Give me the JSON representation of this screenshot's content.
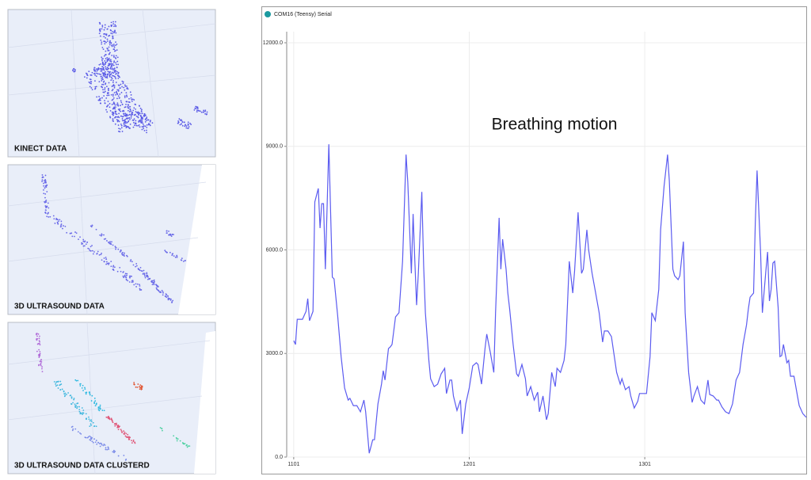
{
  "panels": [
    {
      "label": "KINECT DATA"
    },
    {
      "label": "3D ULTRASOUND DATA"
    },
    {
      "label": "3D ULTRASOUND DATA CLUSTERD"
    }
  ],
  "window_title": "COM16 (Teensy) Serial",
  "chart_data": {
    "type": "line",
    "annotation": "Breathing motion",
    "color": "#5b5bf0",
    "grid": true,
    "xlim": [
      1097,
      1393
    ],
    "xticks": [
      1101,
      1201,
      1301
    ],
    "ylim": [
      0,
      12000
    ],
    "yticks": [
      {
        "value": 0,
        "label": "0.0"
      },
      {
        "value": 3000,
        "label": "3000.0"
      },
      {
        "value": 6000,
        "label": "6000.0"
      },
      {
        "value": 9000,
        "label": "9000.0"
      },
      {
        "value": 12000,
        "label": "12000.0"
      }
    ],
    "x": [
      1101,
      1102,
      1103,
      1106,
      1108,
      1109,
      1110,
      1112,
      1113,
      1115,
      1116,
      1117,
      1118,
      1119,
      1120,
      1121,
      1123,
      1124,
      1126,
      1128,
      1130,
      1132,
      1133,
      1135,
      1137,
      1139,
      1141,
      1142,
      1144,
      1146,
      1147,
      1149,
      1151,
      1152,
      1153,
      1155,
      1156,
      1157,
      1159,
      1161,
      1163,
      1165,
      1166,
      1168,
      1169,
      1170,
      1171,
      1172,
      1174,
      1175,
      1176,
      1178,
      1179,
      1181,
      1183,
      1185,
      1187,
      1188,
      1190,
      1191,
      1192,
      1194,
      1196,
      1197,
      1199,
      1201,
      1203,
      1205,
      1206,
      1208,
      1210,
      1211,
      1213,
      1215,
      1216,
      1218,
      1219,
      1220,
      1222,
      1223,
      1224,
      1226,
      1228,
      1229,
      1231,
      1233,
      1234,
      1236,
      1238,
      1240,
      1241,
      1243,
      1245,
      1246,
      1248,
      1250,
      1251,
      1253,
      1255,
      1256,
      1258,
      1260,
      1261,
      1263,
      1265,
      1266,
      1268,
      1269,
      1271,
      1273,
      1275,
      1277,
      1278,
      1280,
      1282,
      1283,
      1285,
      1287,
      1288,
      1290,
      1292,
      1293,
      1295,
      1297,
      1298,
      1300,
      1302,
      1304,
      1305,
      1307,
      1309,
      1310,
      1312,
      1314,
      1315,
      1317,
      1318,
      1320,
      1321,
      1323,
      1324,
      1326,
      1328,
      1329,
      1331,
      1333,
      1335,
      1337,
      1338,
      1340,
      1342,
      1343,
      1345,
      1347,
      1349,
      1351,
      1353,
      1355,
      1357,
      1359,
      1360,
      1361,
      1363,
      1364,
      1365,
      1367,
      1368,
      1370,
      1371,
      1372,
      1373,
      1374,
      1375,
      1377,
      1378,
      1379,
      1380,
      1382,
      1383,
      1384,
      1386,
      1388,
      1389,
      1391,
      1393
    ],
    "values": [
      3370,
      3260,
      3990,
      3990,
      4220,
      4590,
      3950,
      4220,
      7390,
      7780,
      6630,
      7340,
      7340,
      5440,
      7230,
      9060,
      5210,
      5160,
      4110,
      2910,
      2000,
      1650,
      1700,
      1490,
      1490,
      1310,
      1650,
      1310,
      110,
      500,
      500,
      1540,
      2110,
      2500,
      2230,
      3140,
      3190,
      3260,
      4060,
      4180,
      5670,
      8760,
      7960,
      5320,
      7040,
      5670,
      4400,
      5320,
      7680,
      5550,
      4180,
      2800,
      2270,
      2040,
      2110,
      2410,
      2570,
      1840,
      2230,
      2230,
      1770,
      1350,
      1650,
      670,
      1540,
      2000,
      2640,
      2730,
      2680,
      2110,
      3140,
      3560,
      3030,
      2450,
      4180,
      6930,
      5440,
      6310,
      5440,
      4750,
      4290,
      3260,
      2410,
      2340,
      2680,
      2270,
      1770,
      2040,
      1650,
      1880,
      1310,
      1770,
      1080,
      1260,
      2450,
      2040,
      2570,
      2450,
      2800,
      3260,
      5670,
      4750,
      5390,
      7090,
      5320,
      5440,
      6580,
      6010,
      5320,
      4750,
      4180,
      3330,
      3650,
      3650,
      3490,
      3140,
      2450,
      2110,
      2270,
      1950,
      2040,
      1770,
      1420,
      1610,
      1840,
      1840,
      1840,
      2910,
      4180,
      3950,
      4860,
      6580,
      7850,
      8760,
      8010,
      5440,
      5250,
      5140,
      5250,
      6240,
      4180,
      2450,
      1580,
      1770,
      2040,
      1650,
      1540,
      2230,
      1810,
      1770,
      1650,
      1650,
      1450,
      1310,
      1260,
      1540,
      2230,
      2450,
      3260,
      3830,
      4290,
      4630,
      4750,
      6810,
      8300,
      5900,
      4180,
      5390,
      5940,
      4520,
      4860,
      5620,
      5670,
      4340,
      2910,
      2940,
      3260,
      2730,
      2800,
      2340,
      2340,
      1770,
      1490,
      1260,
      1150
    ]
  }
}
